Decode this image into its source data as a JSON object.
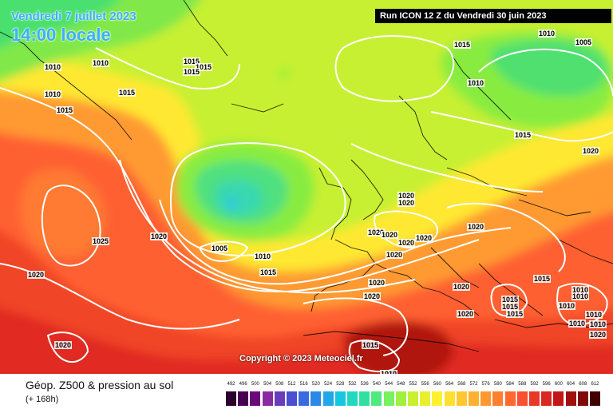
{
  "header": {
    "valid_date": "Vendredi 7 juillet 2023",
    "valid_time": "14:00 locale",
    "run_info": "Run ICON 12 Z du Vendredi 30 juin 2023"
  },
  "copyright": "Copyright © 2023 Meteociel.fr",
  "footer": {
    "title": "Géop. Z500 & pression au sol",
    "lead": "(+ 168h)"
  },
  "scale": {
    "labels": [
      "492",
      "496",
      "500",
      "504",
      "508",
      "512",
      "516",
      "520",
      "524",
      "528",
      "532",
      "536",
      "540",
      "544",
      "548",
      "552",
      "556",
      "560",
      "564",
      "568",
      "572",
      "576",
      "580",
      "584",
      "588",
      "592",
      "596",
      "600",
      "604",
      "608",
      "612"
    ],
    "colors": [
      "#2b002b",
      "#4a0050",
      "#6a0a78",
      "#8a2aa0",
      "#6a3cb8",
      "#4a4ed0",
      "#3a6ae0",
      "#2a88e8",
      "#20a8e8",
      "#18c6e0",
      "#20d8c0",
      "#30e0a0",
      "#50e880",
      "#78f060",
      "#a0f040",
      "#c8f030",
      "#e8f030",
      "#fff030",
      "#ffe030",
      "#ffc830",
      "#ffb030",
      "#ff9830",
      "#ff8030",
      "#ff6830",
      "#f85030",
      "#e83828",
      "#d82820",
      "#c01818",
      "#a01010",
      "#800808",
      "#400000"
    ]
  },
  "isobar_labels": [
    "1010",
    "1010",
    "1015",
    "1015",
    "1015",
    "1010",
    "1015",
    "1015",
    "1015",
    "1010",
    "1005",
    "1015",
    "1010",
    "1020",
    "1025",
    "1020",
    "1020",
    "1005",
    "1010",
    "1015",
    "1020",
    "1020",
    "1020",
    "1020",
    "1020",
    "1020",
    "1020",
    "1020",
    "1020",
    "1020",
    "1020",
    "1020",
    "1015",
    "1015",
    "1015",
    "1015",
    "1010",
    "1010",
    "1010",
    "1010",
    "1010",
    "1010",
    "1020",
    "1015",
    "1010",
    "1020"
  ]
}
